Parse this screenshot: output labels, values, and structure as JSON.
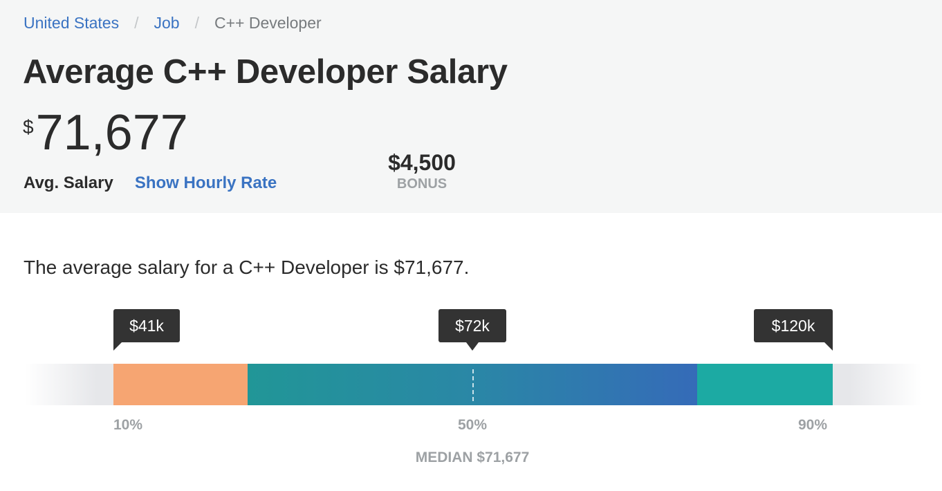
{
  "breadcrumb": {
    "items": [
      {
        "label": "United States"
      },
      {
        "label": "Job"
      },
      {
        "label": "C++ Developer"
      }
    ],
    "separator": "/"
  },
  "header": {
    "title": "Average C++ Developer Salary",
    "salary_currency": "$",
    "salary_amount": "71,677",
    "avg_label": "Avg. Salary",
    "hourly_link": "Show Hourly Rate",
    "bonus_value": "$4,500",
    "bonus_label": "BONUS"
  },
  "summary": "The average salary for a C++ Developer is $71,677.",
  "range": {
    "low": {
      "tooltip": "$41k",
      "percentile": "10%",
      "color": "#f6a572"
    },
    "median": {
      "tooltip": "$72k",
      "percentile": "50%",
      "color": "#2a87a6"
    },
    "high": {
      "tooltip": "$120k",
      "percentile": "90%",
      "color": "#1caaa3"
    },
    "median_label": "MEDIAN $71,677"
  },
  "colors": {
    "link": "#3a73c2",
    "header_bg": "#f5f6f6",
    "muted": "#9da1a4"
  }
}
